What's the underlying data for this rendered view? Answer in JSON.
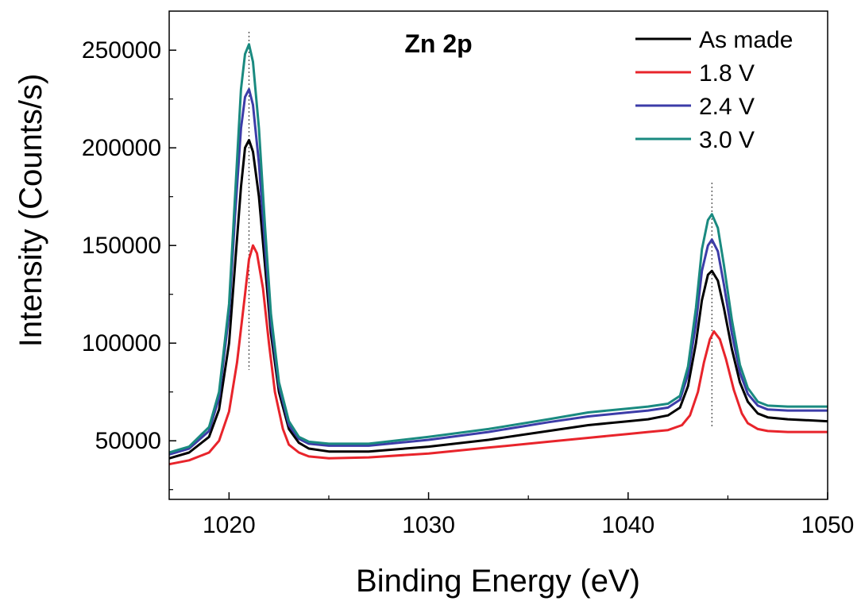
{
  "chart_data": {
    "type": "line",
    "title": "Zn 2p",
    "xlabel": "Binding Energy (eV)",
    "ylabel": "Intensity (Counts/s)",
    "xlim": [
      1017,
      1050
    ],
    "ylim": [
      20000,
      270000
    ],
    "xticks": [
      1020,
      1030,
      1040,
      1050
    ],
    "xtick_labels": [
      "1020",
      "1030",
      "1040",
      "1050"
    ],
    "yticks": [
      50000,
      100000,
      150000,
      200000,
      250000
    ],
    "ytick_labels": [
      "50000",
      "100000",
      "150000",
      "200000",
      "250000"
    ],
    "grid": false,
    "legend_position": "top-right",
    "reference_lines_x": [
      1021.0,
      1044.2
    ],
    "series": [
      {
        "name": "As made",
        "color": "#000000",
        "x": [
          1017,
          1018,
          1019,
          1019.5,
          1020,
          1020.3,
          1020.6,
          1020.8,
          1021.0,
          1021.2,
          1021.5,
          1021.8,
          1022.1,
          1022.5,
          1023,
          1023.5,
          1024,
          1025,
          1027,
          1030,
          1033,
          1036,
          1038,
          1040,
          1041,
          1042,
          1042.6,
          1043,
          1043.4,
          1043.7,
          1044.0,
          1044.2,
          1044.5,
          1044.8,
          1045.2,
          1045.6,
          1046,
          1046.5,
          1047,
          1048,
          1050
        ],
        "y": [
          41000,
          44000,
          52000,
          66000,
          100000,
          140000,
          180000,
          200000,
          204000,
          198000,
          175000,
          140000,
          105000,
          75000,
          56000,
          49000,
          46000,
          44500,
          44500,
          47000,
          50500,
          55000,
          58000,
          60000,
          61000,
          63000,
          67000,
          78000,
          100000,
          122000,
          135000,
          137000,
          132000,
          118000,
          97000,
          80000,
          70000,
          64000,
          62000,
          61000,
          60000
        ]
      },
      {
        "name": "1.8 V",
        "color": "#e8242b",
        "x": [
          1017,
          1018,
          1019,
          1019.5,
          1020,
          1020.4,
          1020.8,
          1021.0,
          1021.2,
          1021.4,
          1021.7,
          1022.0,
          1022.3,
          1022.7,
          1023,
          1023.5,
          1024,
          1025,
          1027,
          1030,
          1033,
          1036,
          1038,
          1040,
          1041,
          1042,
          1042.7,
          1043.1,
          1043.5,
          1043.8,
          1044.1,
          1044.3,
          1044.6,
          1044.9,
          1045.3,
          1045.7,
          1046,
          1046.5,
          1047,
          1048,
          1050
        ],
        "y": [
          38000,
          40000,
          44000,
          50000,
          65000,
          90000,
          125000,
          143000,
          150000,
          146000,
          128000,
          100000,
          75000,
          56000,
          48000,
          44000,
          42000,
          41000,
          41500,
          43500,
          46500,
          49500,
          51500,
          53500,
          54500,
          55500,
          58000,
          63000,
          75000,
          90000,
          102000,
          106000,
          102000,
          92000,
          76000,
          64000,
          59000,
          56000,
          55000,
          54500,
          54500
        ]
      },
      {
        "name": "2.4 V",
        "color": "#3c3ca8",
        "x": [
          1017,
          1018,
          1019,
          1019.5,
          1020,
          1020.3,
          1020.6,
          1020.8,
          1021.0,
          1021.2,
          1021.5,
          1021.8,
          1022.1,
          1022.5,
          1023,
          1023.5,
          1024,
          1025,
          1027,
          1030,
          1033,
          1036,
          1038,
          1040,
          1041,
          1042,
          1042.6,
          1043,
          1043.4,
          1043.7,
          1044.0,
          1044.2,
          1044.5,
          1044.8,
          1045.2,
          1045.6,
          1046,
          1046.5,
          1047,
          1048,
          1050
        ],
        "y": [
          43000,
          46000,
          55000,
          72000,
          115000,
          165000,
          210000,
          226000,
          230000,
          222000,
          192000,
          150000,
          110000,
          78000,
          58000,
          51000,
          48500,
          47500,
          47500,
          50500,
          54500,
          59500,
          62500,
          64500,
          65500,
          67000,
          71000,
          84000,
          110000,
          137000,
          150000,
          153000,
          147000,
          130000,
          105000,
          85000,
          74000,
          68000,
          66000,
          65500,
          65500
        ]
      },
      {
        "name": "3.0 V",
        "color": "#1a8a80",
        "x": [
          1017,
          1018,
          1019,
          1019.5,
          1020,
          1020.3,
          1020.6,
          1020.8,
          1021.0,
          1021.2,
          1021.5,
          1021.8,
          1022.1,
          1022.5,
          1023,
          1023.5,
          1024,
          1025,
          1027,
          1030,
          1033,
          1036,
          1038,
          1040,
          1041,
          1042,
          1042.6,
          1043,
          1043.4,
          1043.7,
          1044.0,
          1044.2,
          1044.5,
          1044.8,
          1045.2,
          1045.6,
          1046,
          1046.5,
          1047,
          1048,
          1050
        ],
        "y": [
          44000,
          47000,
          57000,
          75000,
          120000,
          175000,
          230000,
          248000,
          253000,
          244000,
          210000,
          160000,
          115000,
          80000,
          60000,
          52000,
          49500,
          48500,
          48500,
          52000,
          56000,
          61000,
          64500,
          66500,
          67500,
          69000,
          73000,
          88000,
          118000,
          148000,
          163000,
          166000,
          159000,
          140000,
          112000,
          89000,
          77000,
          70000,
          68000,
          67500,
          67500
        ]
      }
    ]
  }
}
